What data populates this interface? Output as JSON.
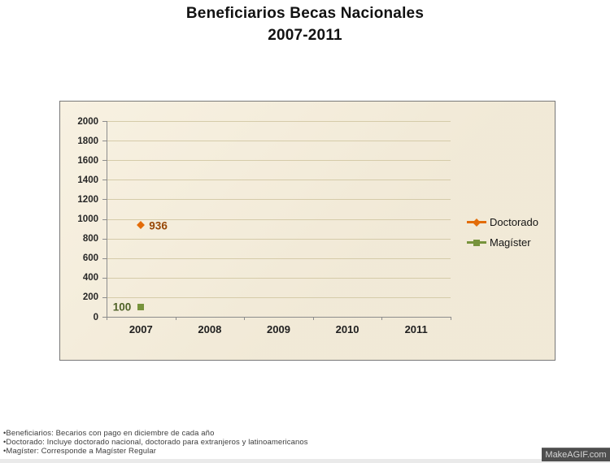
{
  "title": {
    "line1": "Beneficiarios Becas Nacionales",
    "line2": "2007-2011"
  },
  "chart_data": {
    "type": "line",
    "title": "Beneficiarios Becas Nacionales 2007-2011",
    "x_categories": [
      "2007",
      "2008",
      "2009",
      "2010",
      "2011"
    ],
    "series": [
      {
        "name": "Doctorado",
        "marker": "diamond",
        "color": "#e36c09",
        "label_color": "#974706",
        "label_side": "right",
        "data": [
          936,
          null,
          null,
          null,
          null
        ],
        "point_labels": [
          "936",
          "",
          "",
          "",
          ""
        ]
      },
      {
        "name": "Magíster",
        "marker": "square",
        "color": "#77933c",
        "label_color": "#4f6228",
        "label_side": "left",
        "data": [
          100,
          null,
          null,
          null,
          null
        ],
        "point_labels": [
          "100",
          "",
          "",
          "",
          ""
        ]
      }
    ],
    "ylim": [
      0,
      2000
    ],
    "ytick_step": 200,
    "grid": true,
    "legend_position": "right-inside",
    "plot_background": "#f6eedb",
    "gridline_color": "#d5cba9",
    "axis_color": "#8c8c8c"
  },
  "footnotes": [
    "•Beneficiarios: Becarios con pago en diciembre de cada año",
    "•Doctorado: Incluye doctorado nacional, doctorado para extranjeros y latinoamericanos",
    "•Magíster: Corresponde a Magíster Regular"
  ],
  "watermark": "MakeAGIF.com"
}
